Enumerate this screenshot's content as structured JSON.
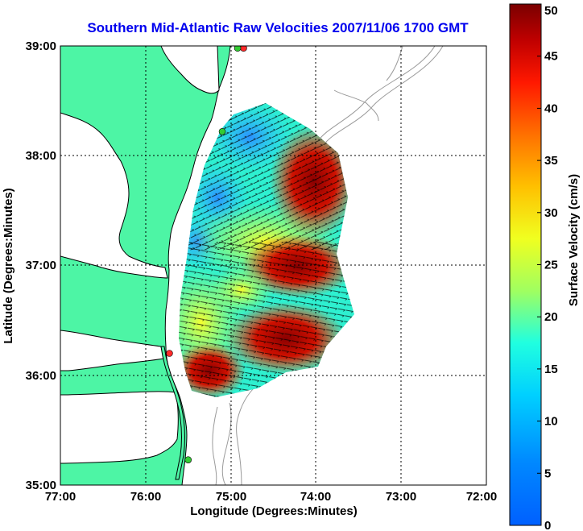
{
  "title": "Southern Mid-Atlantic Raw Velocities 2007/11/06 1700 GMT",
  "x_axis": {
    "label": "Longitude (Degrees:Minutes)",
    "ticks": [
      "77:00",
      "76:00",
      "75:00",
      "74:00",
      "73:00",
      "72:00"
    ],
    "range": [
      -77,
      -72
    ]
  },
  "y_axis": {
    "label": "Latitude (Degrees:Minutes)",
    "ticks": [
      "39:00",
      "38:00",
      "37:00",
      "36:00",
      "35:00"
    ],
    "range": [
      35,
      39
    ]
  },
  "colorbar": {
    "label": "Surface Velocity (cm/s)",
    "ticks": [
      "0",
      "5",
      "10",
      "15",
      "20",
      "25",
      "30",
      "35",
      "40",
      "45",
      "50"
    ],
    "range": [
      0,
      50
    ]
  },
  "colors": {
    "land": "#4df5a5",
    "water": "#ffffff",
    "title": "#0000ee",
    "bathymetry": "#9a9a9a"
  },
  "stations": [
    {
      "lon": -74.85,
      "lat": 38.98,
      "color": "#ff2a2a"
    },
    {
      "lon": -74.92,
      "lat": 38.98,
      "color": "#33cc33"
    },
    {
      "lon": -75.1,
      "lat": 38.22,
      "color": "#33cc33"
    },
    {
      "lon": -75.72,
      "lat": 36.2,
      "color": "#ff2a2a"
    },
    {
      "lon": -75.5,
      "lat": 35.23,
      "color": "#33cc33"
    }
  ],
  "grid": true
}
